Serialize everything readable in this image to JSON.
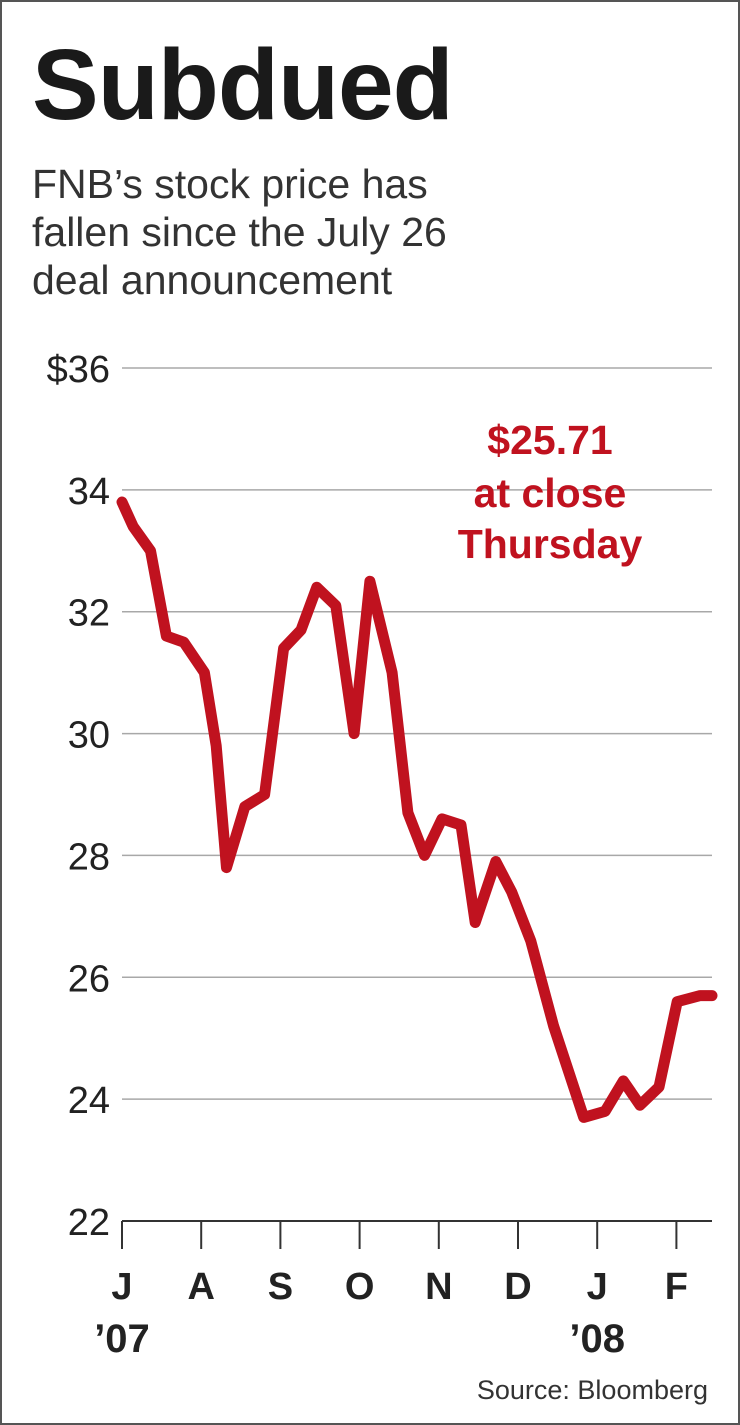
{
  "chart_data": {
    "type": "line",
    "title": "Subdued",
    "subtitle": "FNB's stock price has fallen since the July 26 deal announcement",
    "subtitle_lines": [
      "FNB’s stock price has",
      "fallen since the July 26",
      "deal announcement"
    ],
    "y_tick_labels": [
      "$36",
      "34",
      "32",
      "30",
      "28",
      "26",
      "24",
      "22"
    ],
    "y_ticks": [
      36,
      34,
      32,
      30,
      28,
      26,
      24,
      22
    ],
    "ylim": [
      22,
      36
    ],
    "x_tick_labels": [
      "J",
      "A",
      "S",
      "O",
      "N",
      "D",
      "J",
      "F"
    ],
    "x_ticks": [
      0,
      1,
      2,
      3,
      4,
      5,
      6,
      7
    ],
    "xlim": [
      0,
      7.45
    ],
    "year_labels": [
      {
        "text": "’07",
        "x": 0
      },
      {
        "text": "’08",
        "x": 6
      }
    ],
    "grid": true,
    "series": [
      {
        "color": "#c0121f",
        "points": [
          {
            "x": 0.0,
            "y": 33.8
          },
          {
            "x": 0.14,
            "y": 33.4
          },
          {
            "x": 0.36,
            "y": 33.0
          },
          {
            "x": 0.56,
            "y": 31.6
          },
          {
            "x": 0.78,
            "y": 31.5
          },
          {
            "x": 1.04,
            "y": 31.0
          },
          {
            "x": 1.19,
            "y": 29.8
          },
          {
            "x": 1.32,
            "y": 27.8
          },
          {
            "x": 1.55,
            "y": 28.8
          },
          {
            "x": 1.8,
            "y": 29.0
          },
          {
            "x": 2.04,
            "y": 31.4
          },
          {
            "x": 2.26,
            "y": 31.7
          },
          {
            "x": 2.46,
            "y": 32.4
          },
          {
            "x": 2.7,
            "y": 32.1
          },
          {
            "x": 2.93,
            "y": 30.0
          },
          {
            "x": 3.13,
            "y": 32.5
          },
          {
            "x": 3.41,
            "y": 31.0
          },
          {
            "x": 3.61,
            "y": 28.7
          },
          {
            "x": 3.82,
            "y": 28.0
          },
          {
            "x": 4.04,
            "y": 28.6
          },
          {
            "x": 4.28,
            "y": 28.5
          },
          {
            "x": 4.46,
            "y": 26.9
          },
          {
            "x": 4.72,
            "y": 27.9
          },
          {
            "x": 4.92,
            "y": 27.4
          },
          {
            "x": 5.16,
            "y": 26.6
          },
          {
            "x": 5.45,
            "y": 25.2
          },
          {
            "x": 5.83,
            "y": 23.7
          },
          {
            "x": 6.1,
            "y": 23.8
          },
          {
            "x": 6.33,
            "y": 24.3
          },
          {
            "x": 6.54,
            "y": 23.9
          },
          {
            "x": 6.78,
            "y": 24.2
          },
          {
            "x": 7.01,
            "y": 25.6
          },
          {
            "x": 7.3,
            "y": 25.7
          },
          {
            "x": 7.45,
            "y": 25.7
          }
        ]
      }
    ],
    "annotation": {
      "lines": [
        "$25.71",
        "at close",
        "Thursday"
      ],
      "color": "#c0121f"
    }
  },
  "source": "Source: Bloomberg"
}
